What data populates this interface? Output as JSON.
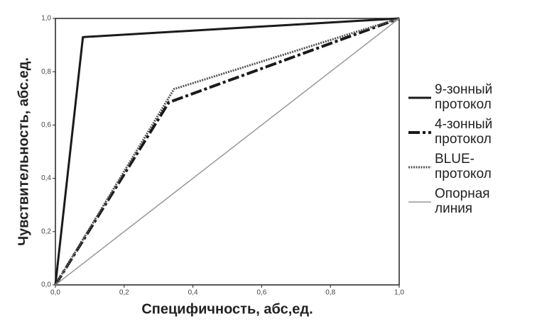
{
  "chart_data": {
    "type": "line",
    "x_label": "Специфичность, абс,ед.",
    "y_label": "Чувствительность, абс.ед.",
    "xlim": [
      0,
      1
    ],
    "ylim": [
      0,
      1
    ],
    "xticks": [
      {
        "value": 0,
        "label": "0,0"
      },
      {
        "value": 0.2,
        "label": "0,2"
      },
      {
        "value": 0.4,
        "label": "0,4"
      },
      {
        "value": 0.6,
        "label": "0,6"
      },
      {
        "value": 0.8,
        "label": "0,8"
      },
      {
        "value": 1,
        "label": "1,0"
      }
    ],
    "yticks": [
      {
        "value": 0,
        "label": "0,0"
      },
      {
        "value": 0.2,
        "label": "0,2"
      },
      {
        "value": 0.4,
        "label": "0,4"
      },
      {
        "value": 0.6,
        "label": "0,6"
      },
      {
        "value": 0.8,
        "label": "0,8"
      },
      {
        "value": 1,
        "label": "1,0"
      }
    ],
    "grid": false,
    "legend": "right",
    "series": [
      {
        "name": "9-зонный протокол",
        "color": "#1a1a1a",
        "style": "solid",
        "x": [
          0,
          0.08,
          1
        ],
        "values": [
          0,
          0.93,
          1
        ]
      },
      {
        "name": "4-зонный протокол",
        "color": "#1a1a1a",
        "style": "dashed",
        "x": [
          0,
          0.33,
          1
        ],
        "values": [
          0,
          0.685,
          1
        ]
      },
      {
        "name": "BLUE-протокол",
        "color": "#555555",
        "style": "dotted",
        "x": [
          0,
          0.345,
          1
        ],
        "values": [
          0,
          0.735,
          1
        ]
      },
      {
        "name": "Опорная линия",
        "color": "#999999",
        "style": "thin",
        "x": [
          0,
          1
        ],
        "values": [
          0,
          1
        ]
      }
    ]
  }
}
